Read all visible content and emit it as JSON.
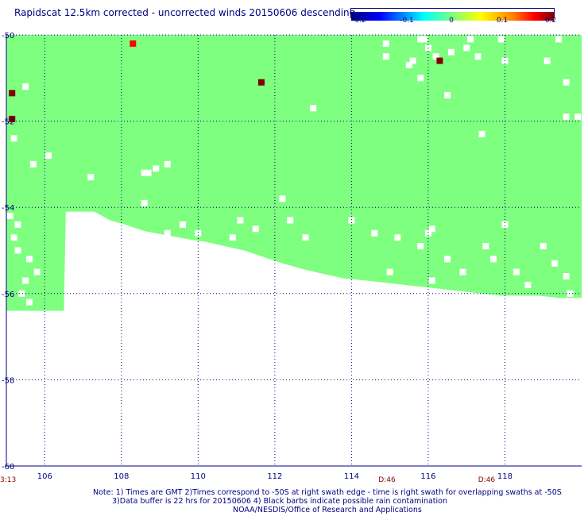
{
  "chart_data": {
    "type": "heatmap",
    "title": "Rapidscat 12.5km corrected - uncorrected winds 20150606 descending",
    "colorbar": {
      "range": [
        -0.2,
        0.2
      ],
      "tick_labels": [
        "-0.2",
        "-0.1",
        "0",
        "0.1",
        "0.2"
      ],
      "colors": [
        "#000080",
        "#0000ff",
        "#00ffff",
        "#7fff7f",
        "#ffff00",
        "#ff7f00",
        "#ff0000",
        "#800000"
      ]
    },
    "x_ticks": [
      106,
      108,
      110,
      112,
      114,
      116,
      118
    ],
    "x_tick_labels": [
      "106",
      "108",
      "110",
      "112",
      "114",
      "116",
      "118"
    ],
    "y_ticks": [
      -50,
      -52,
      -54,
      -56,
      -58,
      -60
    ],
    "y_tick_labels": [
      "-50",
      "-52",
      "-54",
      "-56",
      "-58",
      "-60"
    ],
    "xlim": [
      105,
      120
    ],
    "ylim": [
      -60,
      -50
    ],
    "grid": true,
    "background_value": 0,
    "swath_lower_edge": [
      {
        "lon": 105.0,
        "lat": -56.4
      },
      {
        "lon": 105.5,
        "lat": -56.4
      },
      {
        "lon": 106.0,
        "lat": -56.4
      },
      {
        "lon": 106.5,
        "lat": -56.4
      },
      {
        "lon": 106.55,
        "lat": -54.1
      },
      {
        "lon": 107.3,
        "lat": -54.1
      },
      {
        "lon": 107.7,
        "lat": -54.3
      },
      {
        "lon": 108.1,
        "lat": -54.4
      },
      {
        "lon": 108.6,
        "lat": -54.55
      },
      {
        "lon": 109.2,
        "lat": -54.65
      },
      {
        "lon": 109.8,
        "lat": -54.75
      },
      {
        "lon": 110.2,
        "lat": -54.8
      },
      {
        "lon": 110.7,
        "lat": -54.9
      },
      {
        "lon": 111.2,
        "lat": -55.0
      },
      {
        "lon": 111.7,
        "lat": -55.15
      },
      {
        "lon": 112.2,
        "lat": -55.3
      },
      {
        "lon": 112.8,
        "lat": -55.45
      },
      {
        "lon": 113.3,
        "lat": -55.55
      },
      {
        "lon": 113.8,
        "lat": -55.65
      },
      {
        "lon": 114.4,
        "lat": -55.7
      },
      {
        "lon": 114.9,
        "lat": -55.75
      },
      {
        "lon": 115.4,
        "lat": -55.8
      },
      {
        "lon": 115.9,
        "lat": -55.85
      },
      {
        "lon": 116.4,
        "lat": -55.9
      },
      {
        "lon": 116.9,
        "lat": -55.95
      },
      {
        "lon": 117.4,
        "lat": -56.0
      },
      {
        "lon": 117.9,
        "lat": -56.05
      },
      {
        "lon": 118.4,
        "lat": -56.05
      },
      {
        "lon": 118.9,
        "lat": -56.05
      },
      {
        "lon": 119.4,
        "lat": -56.1
      },
      {
        "lon": 120.0,
        "lat": -56.1
      }
    ],
    "positive_cells": [
      {
        "lon": 108.3,
        "lat": -50.2,
        "value": 0.16
      },
      {
        "lon": 105.15,
        "lat": -51.35,
        "value": 0.2
      },
      {
        "lon": 105.15,
        "lat": -51.95,
        "value": 0.2
      },
      {
        "lon": 111.65,
        "lat": -51.1,
        "value": 0.2
      },
      {
        "lon": 116.3,
        "lat": -50.6,
        "value": 0.2
      }
    ],
    "missing_cells": [
      [
        105.5,
        -51.2
      ],
      [
        105.2,
        -52.4
      ],
      [
        105.7,
        -53.0
      ],
      [
        106.1,
        -52.8
      ],
      [
        107.2,
        -53.3
      ],
      [
        108.9,
        -53.1
      ],
      [
        108.7,
        -53.2
      ],
      [
        108.6,
        -53.2
      ],
      [
        109.2,
        -53.0
      ],
      [
        108.6,
        -53.9
      ],
      [
        105.1,
        -54.2
      ],
      [
        105.3,
        -54.4
      ],
      [
        105.2,
        -54.7
      ],
      [
        105.3,
        -55.0
      ],
      [
        105.6,
        -55.2
      ],
      [
        105.8,
        -55.5
      ],
      [
        105.5,
        -55.7
      ],
      [
        105.4,
        -56.0
      ],
      [
        105.6,
        -56.2
      ],
      [
        109.2,
        -54.6
      ],
      [
        109.6,
        -54.4
      ],
      [
        110.0,
        -54.6
      ],
      [
        111.1,
        -54.3
      ],
      [
        110.9,
        -54.7
      ],
      [
        111.5,
        -54.5
      ],
      [
        112.2,
        -53.8
      ],
      [
        112.4,
        -54.3
      ],
      [
        112.8,
        -54.7
      ],
      [
        114.0,
        -54.3
      ],
      [
        114.6,
        -54.6
      ],
      [
        115.2,
        -54.7
      ],
      [
        115.8,
        -54.9
      ],
      [
        116.1,
        -54.5
      ],
      [
        116.5,
        -55.2
      ],
      [
        116.9,
        -55.5
      ],
      [
        117.5,
        -54.9
      ],
      [
        117.7,
        -55.2
      ],
      [
        118.0,
        -54.4
      ],
      [
        118.3,
        -55.5
      ],
      [
        118.6,
        -55.8
      ],
      [
        119.0,
        -54.9
      ],
      [
        119.3,
        -55.3
      ],
      [
        119.6,
        -55.6
      ],
      [
        119.7,
        -56.0
      ],
      [
        115.0,
        -55.5
      ],
      [
        116.1,
        -55.7
      ],
      [
        113.0,
        -51.7
      ],
      [
        114.9,
        -50.5
      ],
      [
        115.6,
        -50.6
      ],
      [
        116.0,
        -50.3
      ],
      [
        115.9,
        -50.1
      ],
      [
        116.6,
        -50.4
      ],
      [
        117.0,
        -50.3
      ],
      [
        117.1,
        -50.1
      ],
      [
        117.3,
        -50.5
      ],
      [
        118.0,
        -50.6
      ],
      [
        119.1,
        -50.6
      ],
      [
        119.4,
        -50.1
      ],
      [
        119.6,
        -51.1
      ],
      [
        119.6,
        -51.9
      ],
      [
        119.9,
        -51.9
      ],
      [
        117.4,
        -52.3
      ],
      [
        116.5,
        -51.4
      ],
      [
        115.8,
        -51.0
      ],
      [
        115.8,
        -50.1
      ],
      [
        116.2,
        -50.5
      ],
      [
        117.9,
        -50.1
      ],
      [
        114.9,
        -50.2
      ],
      [
        115.5,
        -50.7
      ],
      [
        116.0,
        -54.6
      ]
    ],
    "time_labels": [
      {
        "text": "3:13",
        "lon": 104.7
      },
      {
        "text": "D:46",
        "lon": 114.95
      },
      {
        "text": "D:46",
        "lon": 117.55
      }
    ]
  },
  "notes": {
    "line1": "Note: 1) Times are GMT 2)Times correspond to -50S at right swath edge - time is right swath for overlapping swaths at -50S",
    "line2": "3)Data buffer is 22 hrs for 20150606 4) Black barbs indicate possible rain contamination",
    "line3": "NOAA/NESDIS/Office of Research and Applications"
  }
}
